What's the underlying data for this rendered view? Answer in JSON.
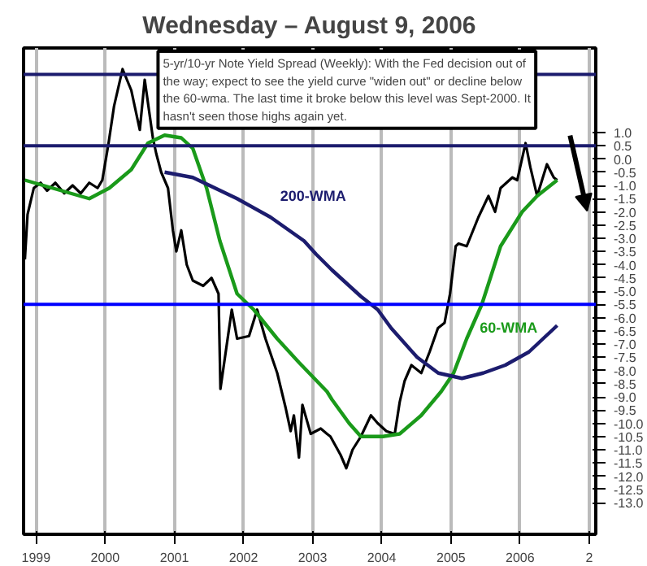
{
  "chart_data": {
    "type": "line",
    "title": "Wednesday – August 9, 2006",
    "annotations": [
      "5-yr/10-yr Note Yield Spread (Weekly): With the Fed decision out of the way; expect to see the yield curve \"widen out\" or decline below the 60-wma. The last time it broke below this level was Sept-2000. It hasn't seen those highs again yet."
    ],
    "series": [
      {
        "color": "#000000",
        "x": [
          "1998-11-03",
          "1998-11-17",
          "1998-12-20",
          "1999-01-25",
          "1999-02-28",
          "1999-04-13",
          "1999-05-30",
          "1999-07-13",
          "1999-08-25",
          "1999-10-09",
          "1999-11-22",
          "1999-12-17",
          "2000-01-19",
          "2000-02-17",
          "2000-04-02",
          "2000-05-18",
          "2000-07-02",
          "2000-07-28",
          "2000-09-09",
          "2000-09-27",
          "2000-10-23",
          "2000-11-28",
          "2000-12-24",
          "2001-01-11",
          "2001-02-06",
          "2001-03-07",
          "2001-04-08",
          "2001-06-02",
          "2001-07-16",
          "2001-08-22",
          "2001-09-01",
          "2001-09-17",
          "2001-10-31",
          "2001-11-28",
          "2002-01-30",
          "2002-03-14",
          "2002-04-27",
          "2002-06-28",
          "2002-08-11",
          "2002-09-07",
          "2002-09-24",
          "2002-10-21",
          "2002-11-08",
          "2002-12-22",
          "2003-02-13",
          "2003-03-18",
          "2003-04-05",
          "2003-05-29",
          "2003-06-28",
          "2003-07-31",
          "2003-09-13",
          "2003-11-05",
          "2003-12-11",
          "2004-01-26",
          "2004-03-10",
          "2004-04-05",
          "2004-05-01",
          "2004-06-06",
          "2004-07-28",
          "2004-09-10",
          "2004-10-24",
          "2004-11-28",
          "2004-12-27",
          "2005-01-26",
          "2005-02-10",
          "2005-03-25",
          "2005-05-26",
          "2005-07-18",
          "2005-08-22",
          "2005-09-20",
          "2005-11-21",
          "2005-12-17",
          "2006-01-30",
          "2006-02-24",
          "2006-04-01",
          "2006-05-23",
          "2006-06-28",
          "2006-07-16"
        ],
        "values": [
          -3.8,
          -2.1,
          -1.1,
          -0.9,
          -1.2,
          -0.9,
          -1.3,
          -1.0,
          -1.3,
          -0.9,
          -1.1,
          -0.8,
          0.6,
          2.0,
          3.4,
          2.6,
          1.1,
          3.0,
          0.8,
          0.2,
          -0.5,
          -1.1,
          -2.7,
          -3.5,
          -2.7,
          -4.0,
          -4.6,
          -4.8,
          -4.5,
          -5.1,
          -8.7,
          -7.9,
          -5.7,
          -6.8,
          -6.7,
          -5.7,
          -6.8,
          -8.1,
          -9.4,
          -10.3,
          -9.7,
          -11.3,
          -9.3,
          -10.4,
          -10.2,
          -10.4,
          -10.5,
          -11.2,
          -11.7,
          -11.0,
          -10.5,
          -9.7,
          -10.0,
          -10.3,
          -10.4,
          -9.2,
          -8.4,
          -7.8,
          -8.1,
          -7.3,
          -6.4,
          -6.2,
          -5.1,
          -3.3,
          -3.2,
          -3.3,
          -2.2,
          -1.4,
          -2.0,
          -1.1,
          -0.7,
          -0.8,
          0.6,
          -0.3,
          -1.4,
          -0.2,
          -0.7,
          -0.8
        ]
      },
      {
        "name": "60-WMA",
        "color": "#1a9a1a",
        "x": [
          "1998-11-03",
          "1999-03-28",
          "1999-10-09",
          "2000-01-23",
          "2000-05-18",
          "2000-08-14",
          "2000-11-10",
          "2001-02-06",
          "2001-04-08",
          "2001-06-20",
          "2001-08-29",
          "2001-11-28",
          "2002-02-24",
          "2002-06-28",
          "2002-10-21",
          "2003-03-18",
          "2003-04-13",
          "2003-07-13",
          "2003-09-13",
          "2004-01-08",
          "2004-04-05",
          "2004-07-28",
          "2004-11-10",
          "2005-01-15",
          "2005-03-25",
          "2005-06-13",
          "2005-09-20",
          "2006-01-12",
          "2006-04-01",
          "2006-07-16"
        ],
        "values": [
          -0.8,
          -1.1,
          -1.5,
          -1.1,
          -0.4,
          0.6,
          0.9,
          0.8,
          0.4,
          -1.1,
          -3.1,
          -5.1,
          -5.7,
          -6.8,
          -7.7,
          -8.8,
          -9.1,
          -10.0,
          -10.5,
          -10.5,
          -10.4,
          -9.7,
          -8.8,
          -8.1,
          -6.8,
          -5.5,
          -3.3,
          -2.0,
          -1.4,
          -0.8
        ]
      },
      {
        "name": "200-WMA",
        "color": "#1c1c6e",
        "x": [
          "2000-11-10",
          "2001-04-08",
          "2001-11-28",
          "2002-05-23",
          "2002-11-17",
          "2003-01-19",
          "2003-04-13",
          "2003-09-13",
          "2003-12-11",
          "2004-02-20",
          "2004-07-06",
          "2004-10-26",
          "2005-02-28",
          "2005-06-20",
          "2005-10-15",
          "2006-02-17",
          "2006-07-16"
        ],
        "values": [
          -0.5,
          -0.7,
          -1.5,
          -2.2,
          -3.1,
          -3.6,
          -4.2,
          -5.2,
          -5.7,
          -6.4,
          -7.5,
          -8.1,
          -8.3,
          -8.1,
          -7.8,
          -7.3,
          -6.3
        ]
      }
    ],
    "ref_lines": [
      {
        "axis": "y",
        "value": 3.2,
        "color": "#1c1c6e"
      },
      {
        "axis": "y",
        "value": 0.5,
        "color": "#1c1c6e"
      },
      {
        "axis": "y",
        "value": -5.5,
        "color": "#0000ff"
      }
    ],
    "xlim": [
      "1998-10-27",
      "2007-02-05"
    ],
    "xticks": [
      {
        "value": "1999",
        "label": "1999"
      },
      {
        "value": "2000",
        "label": "2000"
      },
      {
        "value": "2001",
        "label": "2001"
      },
      {
        "value": "2002",
        "label": "2002"
      },
      {
        "value": "2003",
        "label": "2003"
      },
      {
        "value": "2004",
        "label": "2004"
      },
      {
        "value": "2005",
        "label": "2005"
      },
      {
        "value": "2006",
        "label": "2006"
      },
      {
        "value": "2007",
        "label": "2"
      }
    ],
    "ylim": [
      -14.2,
      4.2
    ],
    "yticks": [
      {
        "value": 1.0,
        "label": "1.0"
      },
      {
        "value": 0.5,
        "label": "0.5"
      },
      {
        "value": 0.0,
        "label": "0.0"
      },
      {
        "value": -0.5,
        "label": "-0.5"
      },
      {
        "value": -1.0,
        "label": "-1.0"
      },
      {
        "value": -1.5,
        "label": "-1.5"
      },
      {
        "value": -2.0,
        "label": "-2.0"
      },
      {
        "value": -2.5,
        "label": "-2.5"
      },
      {
        "value": -3.0,
        "label": "-3.0"
      },
      {
        "value": -3.5,
        "label": "-3.5"
      },
      {
        "value": -4.0,
        "label": "-4.0"
      },
      {
        "value": -4.5,
        "label": "-4.5"
      },
      {
        "value": -5.0,
        "label": "-5.0"
      },
      {
        "value": -5.5,
        "label": "-5.5"
      },
      {
        "value": -6.0,
        "label": "-6.0"
      },
      {
        "value": -6.5,
        "label": "-6.5"
      },
      {
        "value": -7.0,
        "label": "-7.0"
      },
      {
        "value": -7.5,
        "label": "-7.5"
      },
      {
        "value": -8.0,
        "label": "-8.0"
      },
      {
        "value": -8.5,
        "label": "-8.5"
      },
      {
        "value": -9.0,
        "label": "-9.0"
      },
      {
        "value": -9.5,
        "label": "-9.5"
      },
      {
        "value": -10.0,
        "label": "-10.0"
      },
      {
        "value": -10.5,
        "label": "-10.5"
      },
      {
        "value": -11.0,
        "label": "-11.0"
      },
      {
        "value": -11.5,
        "label": "-11.5"
      },
      {
        "value": -12.0,
        "label": "-12.0"
      },
      {
        "value": -12.5,
        "label": "-12.5"
      },
      {
        "value": -13.0,
        "label": "-13.0"
      }
    ],
    "grid": "x"
  }
}
